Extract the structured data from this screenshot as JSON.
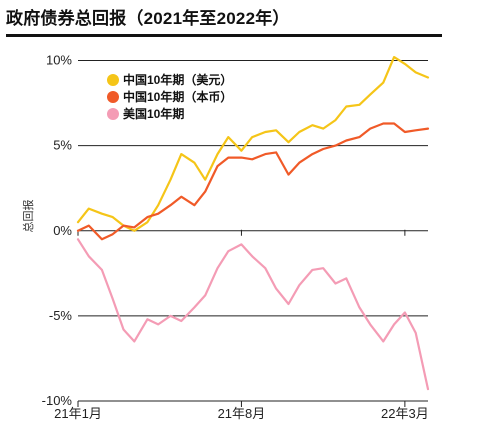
{
  "chart_data": {
    "type": "line",
    "title": "政府债券总回报（2021年至2022年）",
    "xlabel": "",
    "ylabel": "总回报",
    "ylim": [
      -10,
      10.5
    ],
    "yticks": [
      {
        "value": 10,
        "label": "10%"
      },
      {
        "value": 5,
        "label": "5%"
      },
      {
        "value": 0,
        "label": "0%"
      },
      {
        "value": -5,
        "label": "-5%"
      },
      {
        "value": -10,
        "label": "-10%"
      }
    ],
    "x_range": [
      "2021-01-01",
      "2022-03-31"
    ],
    "xticks": [
      {
        "date": "2021-01-01",
        "label": "21年1月"
      },
      {
        "date": "2021-08-01",
        "label": "21年8月"
      },
      {
        "date": "2022-03-01",
        "label": "22年3月"
      }
    ],
    "grid": "horizontal",
    "legend": "top-left",
    "series": [
      {
        "name": "中国10年期（美元）",
        "color": "#f5c518",
        "x": [
          "2021-01-01",
          "2021-01-15",
          "2021-02-01",
          "2021-02-15",
          "2021-03-01",
          "2021-03-15",
          "2021-04-01",
          "2021-04-15",
          "2021-05-01",
          "2021-05-15",
          "2021-06-01",
          "2021-06-15",
          "2021-07-01",
          "2021-07-15",
          "2021-08-01",
          "2021-08-15",
          "2021-09-01",
          "2021-09-15",
          "2021-10-01",
          "2021-10-15",
          "2021-11-01",
          "2021-11-15",
          "2021-12-01",
          "2021-12-15",
          "2022-01-01",
          "2022-01-15",
          "2022-02-01",
          "2022-02-15",
          "2022-03-01",
          "2022-03-15",
          "2022-03-31"
        ],
        "values": [
          0.5,
          1.3,
          1.0,
          0.8,
          0.3,
          0.0,
          0.5,
          1.5,
          3.0,
          4.5,
          4.0,
          3.0,
          4.5,
          5.5,
          4.7,
          5.5,
          5.8,
          5.9,
          5.2,
          5.8,
          6.2,
          6.0,
          6.5,
          7.3,
          7.4,
          8.0,
          8.7,
          10.2,
          9.8,
          9.3,
          9.0
        ]
      },
      {
        "name": "中国10年期（本币）",
        "color": "#f05a28",
        "x": [
          "2021-01-01",
          "2021-01-15",
          "2021-02-01",
          "2021-02-15",
          "2021-03-01",
          "2021-03-15",
          "2021-04-01",
          "2021-04-15",
          "2021-05-01",
          "2021-05-15",
          "2021-06-01",
          "2021-06-15",
          "2021-07-01",
          "2021-07-15",
          "2021-08-01",
          "2021-08-15",
          "2021-09-01",
          "2021-09-15",
          "2021-10-01",
          "2021-10-15",
          "2021-11-01",
          "2021-11-15",
          "2021-12-01",
          "2021-12-15",
          "2022-01-01",
          "2022-01-15",
          "2022-02-01",
          "2022-02-15",
          "2022-03-01",
          "2022-03-15",
          "2022-03-31"
        ],
        "values": [
          0.0,
          0.3,
          -0.5,
          -0.2,
          0.3,
          0.2,
          0.8,
          1.0,
          1.5,
          2.0,
          1.5,
          2.3,
          3.8,
          4.3,
          4.3,
          4.2,
          4.5,
          4.6,
          3.3,
          4.0,
          4.5,
          4.8,
          5.0,
          5.3,
          5.5,
          6.0,
          6.3,
          6.3,
          5.8,
          5.9,
          6.0
        ]
      },
      {
        "name": "美国10年期",
        "color": "#f49cb5",
        "x": [
          "2021-01-01",
          "2021-01-15",
          "2021-02-01",
          "2021-02-15",
          "2021-03-01",
          "2021-03-15",
          "2021-04-01",
          "2021-04-15",
          "2021-05-01",
          "2021-05-15",
          "2021-06-01",
          "2021-06-15",
          "2021-07-01",
          "2021-07-15",
          "2021-08-01",
          "2021-08-15",
          "2021-09-01",
          "2021-09-15",
          "2021-10-01",
          "2021-10-15",
          "2021-11-01",
          "2021-11-15",
          "2021-12-01",
          "2021-12-15",
          "2022-01-01",
          "2022-01-15",
          "2022-02-01",
          "2022-02-15",
          "2022-03-01",
          "2022-03-15",
          "2022-03-31"
        ],
        "values": [
          -0.5,
          -1.5,
          -2.3,
          -4.0,
          -5.8,
          -6.5,
          -5.2,
          -5.5,
          -5.0,
          -5.3,
          -4.5,
          -3.8,
          -2.2,
          -1.2,
          -0.8,
          -1.5,
          -2.2,
          -3.4,
          -4.3,
          -3.2,
          -2.3,
          -2.2,
          -3.1,
          -2.8,
          -4.5,
          -5.5,
          -6.5,
          -5.5,
          -4.8,
          -6.0,
          -9.3
        ]
      }
    ]
  }
}
